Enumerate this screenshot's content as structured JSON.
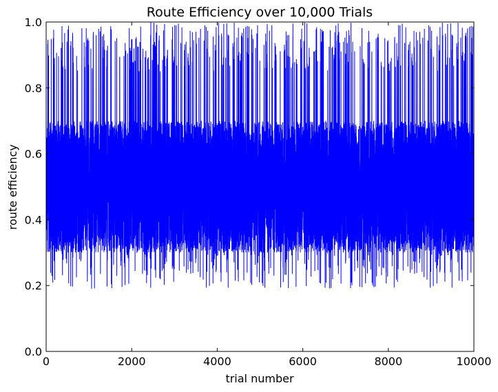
{
  "chart_data": {
    "type": "line",
    "title": "Route Efficiency over 10,000 Trials",
    "xlabel": "trial number",
    "ylabel": "route efficiency",
    "xlim": [
      0,
      10000
    ],
    "ylim": [
      0.0,
      1.0
    ],
    "xticks": [
      0,
      2000,
      4000,
      6000,
      8000,
      10000
    ],
    "yticks": [
      0.0,
      0.2,
      0.4,
      0.6,
      0.8,
      1.0
    ],
    "xtick_labels": [
      "0",
      "2000",
      "4000",
      "6000",
      "8000",
      "10000"
    ],
    "ytick_labels": [
      "0.0",
      "0.2",
      "0.4",
      "0.6",
      "0.8",
      "1.0"
    ],
    "grid": false,
    "series": [
      {
        "color": "#0000ff",
        "n_points": 10000,
        "value_range": [
          0.19,
          1.0
        ],
        "dense_band": [
          0.3,
          0.7
        ]
      }
    ]
  }
}
